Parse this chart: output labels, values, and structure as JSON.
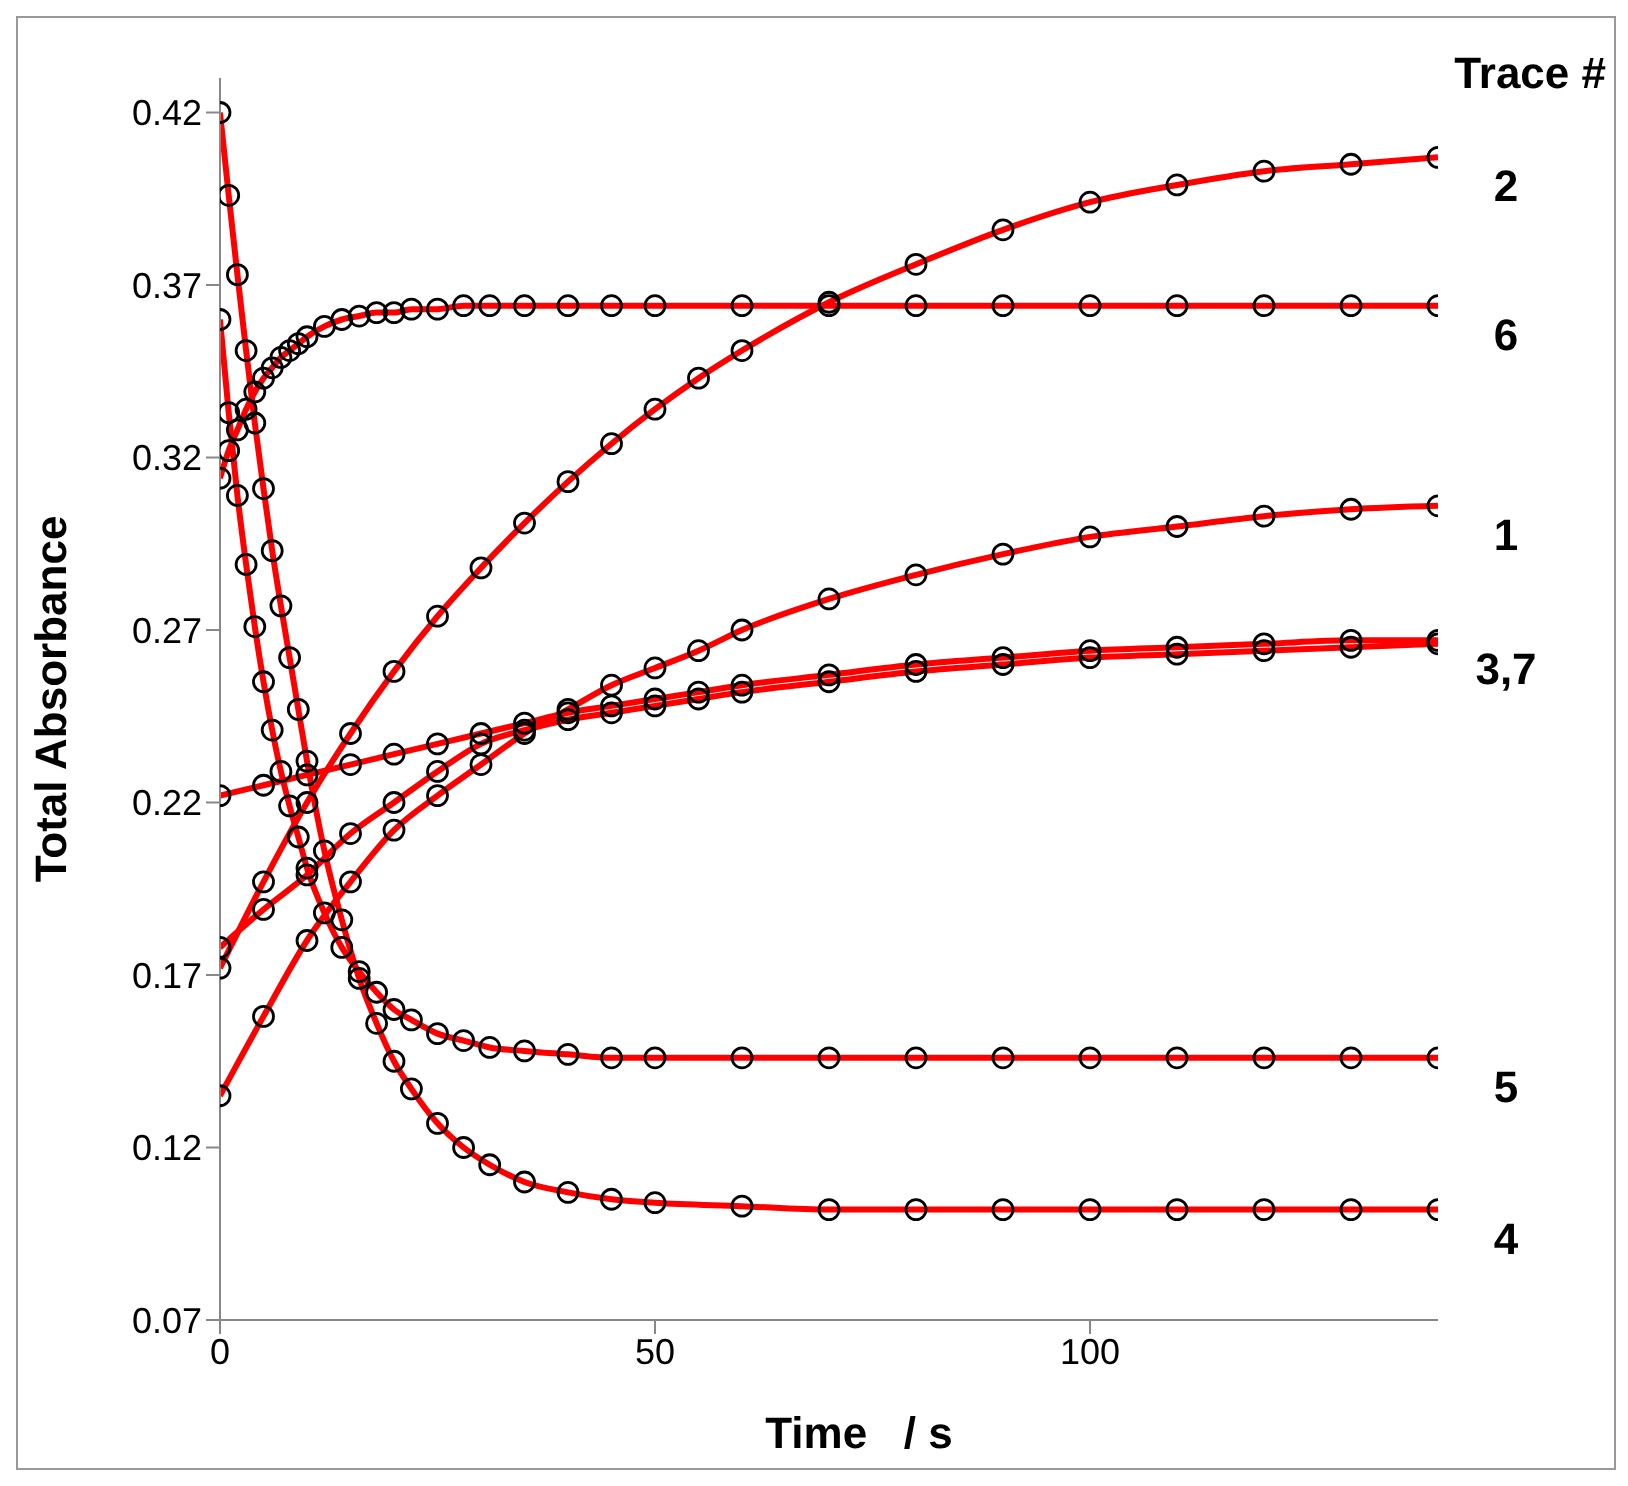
{
  "chart_data": {
    "type": "scatter",
    "xlabel": "Time   / s",
    "ylabel": "Total Absorbance",
    "legend_title": "Trace #",
    "xlim": [
      0,
      140
    ],
    "xticks": [
      0,
      50,
      100
    ],
    "ylim": [
      0.07,
      0.43
    ],
    "yticks": [
      0.07,
      0.12,
      0.17,
      0.22,
      0.27,
      0.32,
      0.37,
      0.42
    ],
    "grid": false,
    "marker": "circle",
    "series": [
      {
        "type": "line",
        "color": "#ff0000",
        "marker": "none",
        "x": [
          0,
          1,
          2,
          3,
          4,
          5,
          6,
          7,
          8,
          9,
          10,
          12,
          14,
          16,
          18,
          20,
          22,
          25,
          28,
          31,
          35,
          40,
          45,
          50,
          60,
          70,
          80,
          90,
          100,
          110,
          120,
          130,
          140
        ],
        "values": [
          0.42,
          0.396,
          0.373,
          0.351,
          0.33,
          0.311,
          0.293,
          0.277,
          0.262,
          0.247,
          0.232,
          0.206,
          0.186,
          0.169,
          0.156,
          0.145,
          0.137,
          0.127,
          0.12,
          0.115,
          0.11,
          0.107,
          0.105,
          0.104,
          0.103,
          0.102,
          0.102,
          0.102,
          0.102,
          0.102,
          0.102,
          0.102,
          0.102
        ]
      },
      {
        "type": "line",
        "color": "#ff0000",
        "marker": "none",
        "x": [
          0,
          1,
          2,
          3,
          4,
          5,
          6,
          7,
          8,
          9,
          10,
          12,
          14,
          16,
          18,
          20,
          22,
          25,
          28,
          31,
          35,
          40,
          45,
          50,
          60,
          70,
          80,
          90,
          100,
          110,
          120,
          130,
          140
        ],
        "values": [
          0.36,
          0.333,
          0.309,
          0.289,
          0.271,
          0.255,
          0.241,
          0.229,
          0.219,
          0.21,
          0.201,
          0.188,
          0.178,
          0.171,
          0.165,
          0.16,
          0.157,
          0.153,
          0.151,
          0.149,
          0.148,
          0.147,
          0.146,
          0.146,
          0.146,
          0.146,
          0.146,
          0.146,
          0.146,
          0.146,
          0.146,
          0.146,
          0.146
        ]
      },
      {
        "type": "line",
        "color": "#ff0000",
        "marker": "none",
        "x": [
          0,
          1,
          2,
          3,
          4,
          5,
          6,
          7,
          8,
          9,
          10,
          12,
          14,
          16,
          18,
          20,
          22,
          25,
          28,
          31,
          35,
          40,
          45,
          50,
          60,
          70,
          80,
          90,
          100,
          110,
          120,
          130,
          140
        ],
        "values": [
          0.314,
          0.322,
          0.328,
          0.334,
          0.339,
          0.343,
          0.346,
          0.349,
          0.351,
          0.353,
          0.355,
          0.358,
          0.36,
          0.361,
          0.362,
          0.362,
          0.363,
          0.363,
          0.364,
          0.364,
          0.364,
          0.364,
          0.364,
          0.364,
          0.364,
          0.364,
          0.364,
          0.364,
          0.364,
          0.364,
          0.364,
          0.364,
          0.364
        ]
      },
      {
        "type": "line",
        "color": "#ff0000",
        "marker": "none",
        "x": [
          0,
          5,
          10,
          15,
          20,
          25,
          30,
          35,
          40,
          45,
          50,
          55,
          60,
          70,
          80,
          90,
          100,
          110,
          120,
          130,
          140
        ],
        "values": [
          0.172,
          0.197,
          0.22,
          0.24,
          0.258,
          0.274,
          0.288,
          0.301,
          0.313,
          0.324,
          0.334,
          0.343,
          0.351,
          0.365,
          0.376,
          0.386,
          0.394,
          0.399,
          0.403,
          0.405,
          0.407
        ]
      },
      {
        "type": "line",
        "color": "#ff0000",
        "marker": "none",
        "x": [
          0,
          5,
          10,
          15,
          20,
          25,
          30,
          35,
          40,
          45,
          50,
          55,
          60,
          70,
          80,
          90,
          100,
          110,
          120,
          130,
          140
        ],
        "values": [
          0.135,
          0.158,
          0.18,
          0.197,
          0.212,
          0.222,
          0.231,
          0.24,
          0.247,
          0.254,
          0.259,
          0.264,
          0.27,
          0.279,
          0.286,
          0.292,
          0.297,
          0.3,
          0.303,
          0.305,
          0.306
        ]
      },
      {
        "type": "line",
        "color": "#ff0000",
        "marker": "none",
        "x": [
          0,
          5,
          10,
          15,
          20,
          25,
          30,
          35,
          40,
          45,
          50,
          55,
          60,
          70,
          80,
          90,
          100,
          110,
          120,
          130,
          140
        ],
        "values": [
          0.222,
          0.225,
          0.228,
          0.231,
          0.234,
          0.237,
          0.24,
          0.243,
          0.246,
          0.248,
          0.25,
          0.252,
          0.254,
          0.257,
          0.26,
          0.262,
          0.264,
          0.265,
          0.266,
          0.267,
          0.267
        ]
      },
      {
        "type": "line",
        "color": "#ff0000",
        "marker": "none",
        "x": [
          0,
          5,
          10,
          15,
          20,
          25,
          30,
          35,
          40,
          45,
          50,
          55,
          60,
          70,
          80,
          90,
          100,
          110,
          120,
          130,
          140
        ],
        "values": [
          0.178,
          0.189,
          0.199,
          0.211,
          0.22,
          0.229,
          0.237,
          0.241,
          0.244,
          0.246,
          0.248,
          0.25,
          0.252,
          0.255,
          0.258,
          0.26,
          0.262,
          0.263,
          0.264,
          0.265,
          0.266
        ]
      },
      {
        "name": "4",
        "color": "#000000",
        "x": [
          0,
          1,
          2,
          3,
          4,
          5,
          6,
          7,
          8,
          9,
          10,
          12,
          14,
          16,
          18,
          20,
          22,
          25,
          28,
          31,
          35,
          40,
          45,
          50,
          60,
          70,
          80,
          90,
          100,
          110,
          120,
          130,
          140
        ],
        "values": [
          0.42,
          0.396,
          0.373,
          0.351,
          0.33,
          0.311,
          0.293,
          0.277,
          0.262,
          0.247,
          0.232,
          0.206,
          0.186,
          0.169,
          0.156,
          0.145,
          0.137,
          0.127,
          0.12,
          0.115,
          0.11,
          0.107,
          0.105,
          0.104,
          0.103,
          0.102,
          0.102,
          0.102,
          0.102,
          0.102,
          0.102,
          0.102,
          0.102
        ]
      },
      {
        "name": "5",
        "color": "#000000",
        "x": [
          0,
          1,
          2,
          3,
          4,
          5,
          6,
          7,
          8,
          9,
          10,
          12,
          14,
          16,
          18,
          20,
          22,
          25,
          28,
          31,
          35,
          40,
          45,
          50,
          60,
          70,
          80,
          90,
          100,
          110,
          120,
          130,
          140
        ],
        "values": [
          0.36,
          0.333,
          0.309,
          0.289,
          0.271,
          0.255,
          0.241,
          0.229,
          0.219,
          0.21,
          0.201,
          0.188,
          0.178,
          0.171,
          0.165,
          0.16,
          0.157,
          0.153,
          0.151,
          0.149,
          0.148,
          0.147,
          0.146,
          0.146,
          0.146,
          0.146,
          0.146,
          0.146,
          0.146,
          0.146,
          0.146,
          0.146,
          0.146
        ]
      },
      {
        "name": "6",
        "color": "#000000",
        "x": [
          0,
          1,
          2,
          3,
          4,
          5,
          6,
          7,
          8,
          9,
          10,
          12,
          14,
          16,
          18,
          20,
          22,
          25,
          28,
          31,
          35,
          40,
          45,
          50,
          60,
          70,
          80,
          90,
          100,
          110,
          120,
          130,
          140
        ],
        "values": [
          0.314,
          0.322,
          0.328,
          0.334,
          0.339,
          0.343,
          0.346,
          0.349,
          0.351,
          0.353,
          0.355,
          0.358,
          0.36,
          0.361,
          0.362,
          0.362,
          0.363,
          0.363,
          0.364,
          0.364,
          0.364,
          0.364,
          0.364,
          0.364,
          0.364,
          0.364,
          0.364,
          0.364,
          0.364,
          0.364,
          0.364,
          0.364,
          0.364
        ]
      },
      {
        "name": "2",
        "color": "#000000",
        "x": [
          0,
          5,
          10,
          15,
          20,
          25,
          30,
          35,
          40,
          45,
          50,
          55,
          60,
          70,
          80,
          90,
          100,
          110,
          120,
          130,
          140
        ],
        "values": [
          0.172,
          0.197,
          0.22,
          0.24,
          0.258,
          0.274,
          0.288,
          0.301,
          0.313,
          0.324,
          0.334,
          0.343,
          0.351,
          0.365,
          0.376,
          0.386,
          0.394,
          0.399,
          0.403,
          0.405,
          0.407
        ]
      },
      {
        "name": "1",
        "color": "#000000",
        "x": [
          0,
          5,
          10,
          15,
          20,
          25,
          30,
          35,
          40,
          45,
          50,
          55,
          60,
          70,
          80,
          90,
          100,
          110,
          120,
          130,
          140
        ],
        "values": [
          0.135,
          0.158,
          0.18,
          0.197,
          0.212,
          0.222,
          0.231,
          0.24,
          0.247,
          0.254,
          0.259,
          0.264,
          0.27,
          0.279,
          0.286,
          0.292,
          0.297,
          0.3,
          0.303,
          0.305,
          0.306
        ]
      },
      {
        "name": "3,7",
        "color": "#000000",
        "x": [
          0,
          5,
          10,
          15,
          20,
          25,
          30,
          35,
          40,
          45,
          50,
          55,
          60,
          70,
          80,
          90,
          100,
          110,
          120,
          130,
          140
        ],
        "values": [
          0.222,
          0.225,
          0.228,
          0.231,
          0.234,
          0.237,
          0.24,
          0.243,
          0.246,
          0.248,
          0.25,
          0.252,
          0.254,
          0.257,
          0.26,
          0.262,
          0.264,
          0.265,
          0.266,
          0.267,
          0.267
        ]
      },
      {
        "color": "#000000",
        "x": [
          0,
          5,
          10,
          15,
          20,
          25,
          30,
          35,
          40,
          45,
          50,
          55,
          60,
          70,
          80,
          90,
          100,
          110,
          120,
          130,
          140
        ],
        "values": [
          0.178,
          0.189,
          0.199,
          0.211,
          0.22,
          0.229,
          0.237,
          0.241,
          0.244,
          0.246,
          0.248,
          0.25,
          0.252,
          0.255,
          0.258,
          0.26,
          0.262,
          0.263,
          0.264,
          0.265,
          0.266
        ]
      }
    ]
  }
}
